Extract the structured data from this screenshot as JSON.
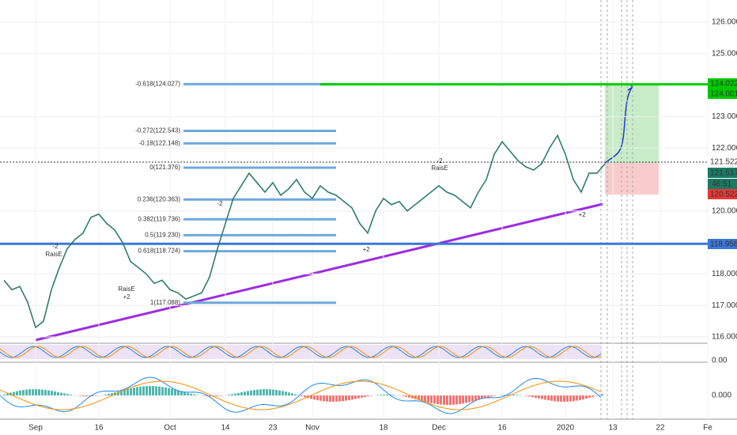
{
  "chart_data": {
    "type": "line",
    "categories": [
      null,
      null,
      null,
      null,
      "Sep",
      null,
      null,
      null,
      null,
      null,
      null,
      null,
      "16",
      null,
      null,
      null,
      null,
      null,
      null,
      null,
      null,
      "Oct",
      null,
      null,
      null,
      null,
      null,
      null,
      "14",
      null,
      null,
      null,
      null,
      null,
      "23",
      null,
      null,
      null,
      null,
      "Nov",
      null,
      null,
      null,
      null,
      null,
      null,
      null,
      null,
      "18",
      null,
      null,
      null,
      null,
      null,
      null,
      "Dec",
      null,
      null,
      null,
      null,
      null,
      null,
      null,
      "16",
      null,
      null,
      null,
      null,
      null,
      null,
      null,
      "2020",
      null,
      null,
      null,
      null,
      null,
      "13",
      null,
      null,
      null,
      null,
      null,
      "22",
      null,
      null,
      null,
      null,
      null,
      "Fe"
    ],
    "values": [
      117.8,
      117.5,
      117.6,
      117.1,
      116.3,
      116.5,
      117.5,
      118.2,
      118.8,
      119.1,
      119.3,
      119.8,
      119.9,
      119.6,
      119.4,
      119.0,
      118.4,
      118.2,
      118.0,
      117.7,
      117.8,
      117.5,
      117.4,
      117.2,
      117.3,
      117.4,
      117.9,
      118.8,
      119.6,
      120.4,
      120.8,
      121.2,
      120.9,
      120.6,
      120.9,
      120.5,
      120.7,
      121.0,
      120.6,
      120.4,
      120.8,
      120.6,
      120.5,
      120.3,
      120.1,
      119.6,
      119.3,
      120.0,
      120.4,
      120.2,
      120.3,
      120.0,
      120.2,
      120.4,
      120.6,
      120.8,
      120.6,
      120.5,
      120.3,
      120.1,
      120.6,
      121.0,
      121.8,
      122.2,
      121.9,
      121.6,
      121.4,
      121.3,
      121.5,
      122.0,
      122.4,
      121.8,
      121.0,
      120.6,
      121.2,
      121.2,
      121.5,
      null,
      null,
      null,
      null,
      null,
      null,
      null,
      null,
      null,
      null,
      null,
      null,
      null
    ],
    "color": "#2e7d6b",
    "ylim": [
      115.9,
      126.7
    ],
    "yticks": [
      {
        "value": 116,
        "label": "116.000"
      },
      {
        "value": 117,
        "label": "117.000"
      },
      {
        "value": 118,
        "label": "118.000"
      },
      {
        "value": 120,
        "label": "120.000"
      },
      {
        "value": 122,
        "label": "122.000"
      },
      {
        "value": 123,
        "label": "123.000"
      },
      {
        "value": 125,
        "label": "125.000"
      },
      {
        "value": 126,
        "label": "126.000"
      }
    ],
    "price_tags": [
      {
        "value": 124.022,
        "label": "124.022",
        "color": "#00c800"
      },
      {
        "value": 124.001,
        "label": "124.001",
        "color": "#00c800"
      },
      {
        "value": 121.522,
        "label": "121.522",
        "color": "#ffffff"
      },
      {
        "value": 121.517,
        "label": "121.517",
        "color": "#1b7a63"
      },
      {
        "value": 120.522,
        "label": "120.522",
        "color": "#e53935"
      },
      {
        "value": 118.958,
        "label": "118.958",
        "color": "#3b78d8"
      }
    ],
    "countdown": "46:51",
    "fib_levels": [
      {
        "value": 124.027,
        "label": "-0.618(124.027)"
      },
      {
        "value": 122.543,
        "label": "-0.272(122.543)"
      },
      {
        "value": 122.148,
        "label": "-0.18(122.148)"
      },
      {
        "value": 121.376,
        "label": "0(121.376)"
      },
      {
        "value": 120.363,
        "label": "0.236(120.363)"
      },
      {
        "value": 119.736,
        "label": "0.382(119.736)"
      },
      {
        "value": 119.23,
        "label": "0.5(119.230)"
      },
      {
        "value": 118.724,
        "label": "0.618(118.724)"
      },
      {
        "value": 117.088,
        "label": "1(117.088)"
      }
    ],
    "markers": [
      "-2",
      "RaisE",
      "-2",
      "-2",
      "RaisE",
      "RaisE",
      "+2",
      "+2",
      "+2"
    ],
    "indicator_ticks": [
      {
        "value": 0,
        "label": "0.00"
      },
      {
        "value": 0,
        "label": "0.000"
      }
    ]
  }
}
